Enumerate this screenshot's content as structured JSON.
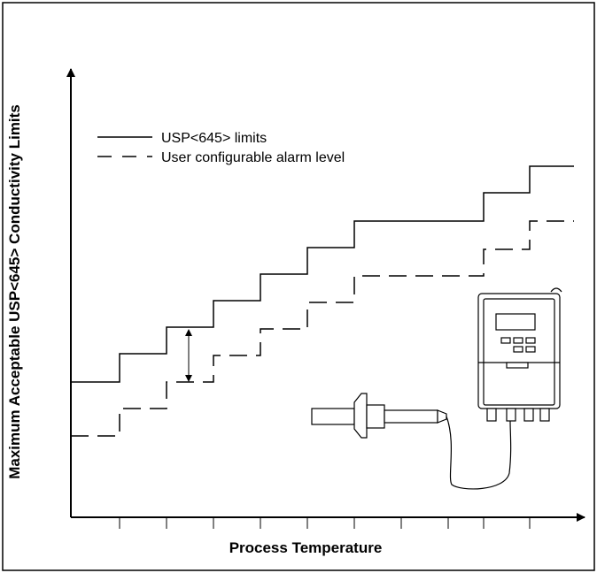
{
  "y_axis_label": "Maximum Acceptable USP<645> Conductivity Limits",
  "x_axis_label": "Process Temperature",
  "legend": [
    "USP<645> limits",
    "User configurable alarm level"
  ]
}
